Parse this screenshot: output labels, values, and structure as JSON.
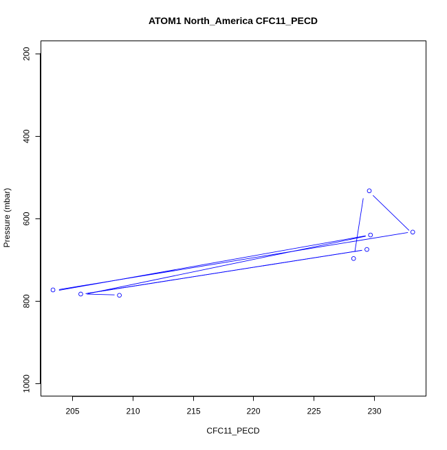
{
  "chart_data": {
    "type": "line",
    "title": "ATOM1 North_America CFC11_PECD",
    "xlabel": "CFC11_PECD",
    "ylabel": "Pressure (mbar)",
    "xlim": [
      202.4,
      234.3
    ],
    "ylim": [
      1030,
      170
    ],
    "y_reversed": true,
    "xticks": [
      205,
      210,
      215,
      220,
      225,
      230
    ],
    "yticks": [
      200,
      400,
      600,
      800,
      1000
    ],
    "grid": false,
    "legend": "none",
    "series": [
      {
        "color": "#0000ff",
        "marker": "open-circle",
        "points": [
          {
            "x": 229.6,
            "y": 533
          },
          {
            "x": 233.2,
            "y": 633
          },
          {
            "x": 203.4,
            "y": 773
          },
          {
            "x": 229.7,
            "y": 640
          },
          {
            "x": 205.7,
            "y": 783
          },
          {
            "x": 229.4,
            "y": 675
          },
          {
            "x": 208.9,
            "y": 786
          },
          {
            "x": 228.3,
            "y": 697
          }
        ],
        "line_segments": [
          {
            "from": {
              "x": 229.1,
              "y": 551
            },
            "to": {
              "x": 228.4,
              "y": 681
            }
          },
          {
            "from": {
              "x": 229.9,
              "y": 544
            },
            "to": {
              "x": 232.9,
              "y": 629
            }
          },
          {
            "from": {
              "x": 232.8,
              "y": 634
            },
            "to": {
              "x": 203.9,
              "y": 772
            }
          },
          {
            "from": {
              "x": 203.9,
              "y": 774
            },
            "to": {
              "x": 229.3,
              "y": 642
            }
          },
          {
            "from": {
              "x": 229.3,
              "y": 643
            },
            "to": {
              "x": 206.3,
              "y": 782
            }
          },
          {
            "from": {
              "x": 206.3,
              "y": 781
            },
            "to": {
              "x": 229.0,
              "y": 677
            }
          },
          {
            "from": {
              "x": 229.0,
              "y": 677
            },
            "to": {
              "x": 206.1,
              "y": 782
            }
          },
          {
            "from": {
              "x": 206.2,
              "y": 783
            },
            "to": {
              "x": 208.5,
              "y": 785
            }
          }
        ]
      }
    ]
  }
}
